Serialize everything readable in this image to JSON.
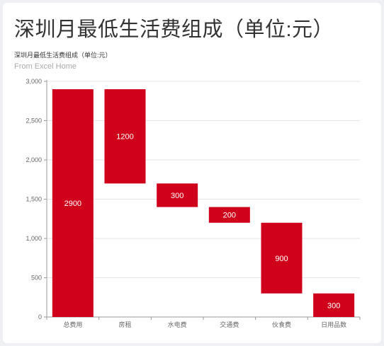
{
  "page": {
    "title": "深圳月最低生活费组成（单位:元）"
  },
  "chart_data": {
    "type": "bar",
    "subtype": "waterfall",
    "title": "深圳月最低生活费组成（单位:元）",
    "subtitle": "From Excel Home",
    "categories": [
      "总费用",
      "房租",
      "水电费",
      "交通费",
      "伙食费",
      "日用品数"
    ],
    "series": [
      {
        "values": [
          2900,
          1200,
          300,
          200,
          900,
          300
        ],
        "bases": [
          0,
          1700,
          1400,
          1200,
          300,
          0
        ]
      }
    ],
    "data_labels": [
      "2900",
      "1200",
      "300",
      "200",
      "900",
      "300"
    ],
    "yticks": [
      "0",
      "500",
      "1,000",
      "1,500",
      "2,000",
      "2,500",
      "3,000"
    ],
    "ylim": [
      0,
      3000
    ],
    "grid": true,
    "legend": "none",
    "colors": {
      "bar": "#d0021b",
      "label": "#ffffff",
      "axis": "#666666",
      "grid": "#e6e6e6"
    }
  }
}
